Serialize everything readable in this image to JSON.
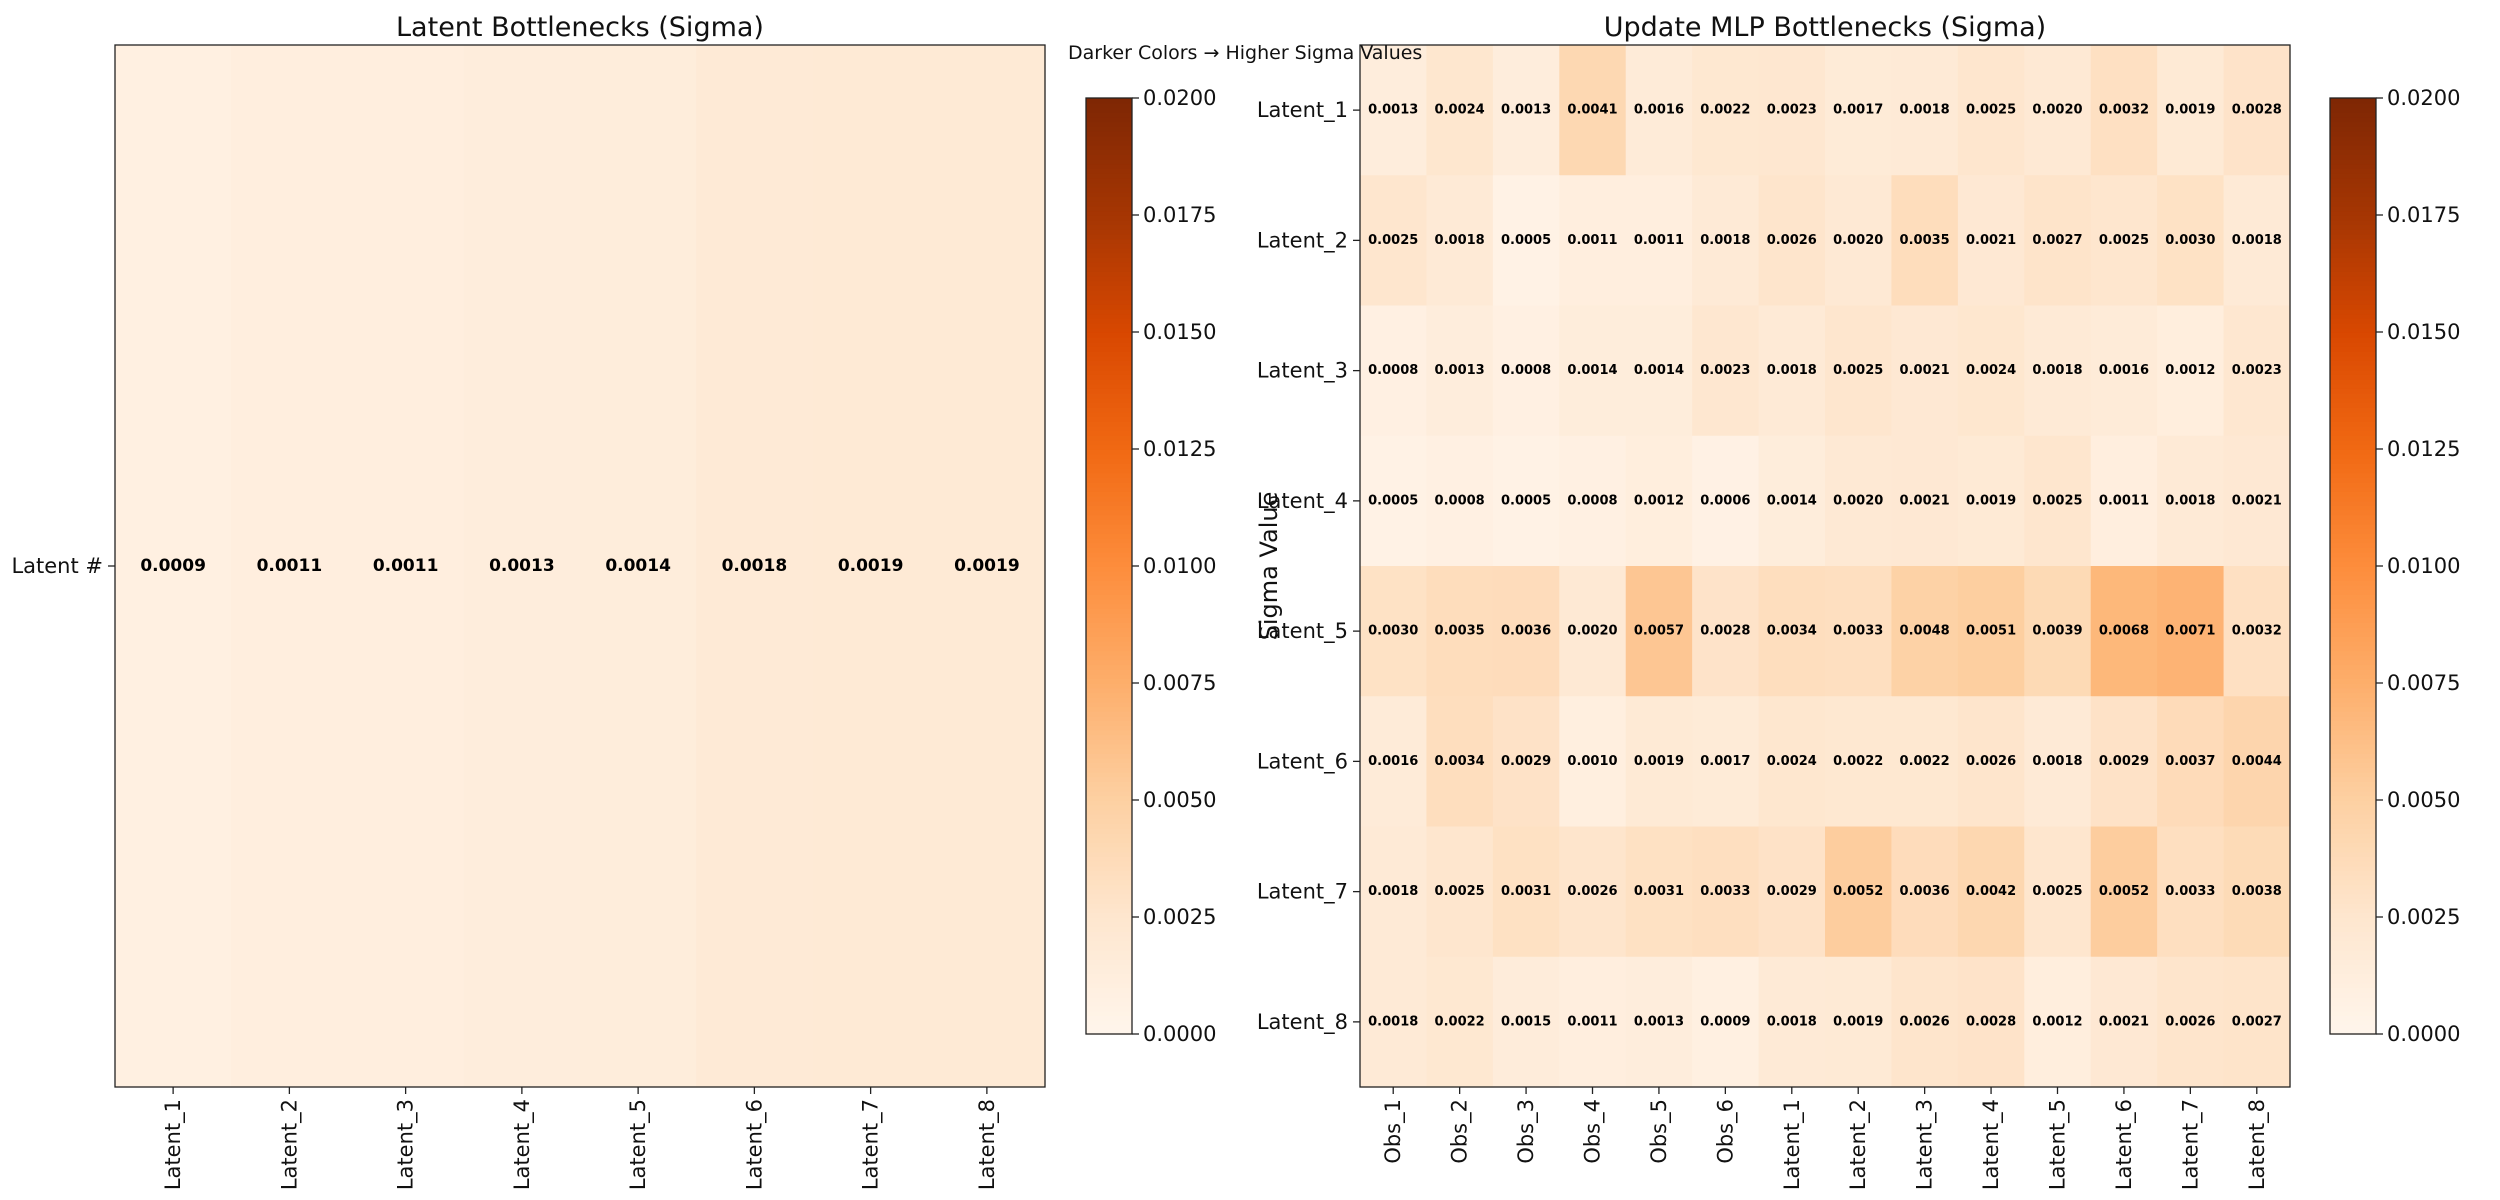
{
  "figure_note": "Darker Colors → Higher Sigma Values",
  "colormap_stops": [
    "#fff5eb",
    "#fee6ce",
    "#fdd0a2",
    "#fdae6b",
    "#fd8d3c",
    "#f16913",
    "#d94801",
    "#a63603",
    "#7f2704"
  ],
  "chart_data": [
    {
      "type": "heatmap",
      "title": "Latent Bottlenecks (Sigma)",
      "x_labels": [
        "Latent_1",
        "Latent_2",
        "Latent_3",
        "Latent_4",
        "Latent_5",
        "Latent_6",
        "Latent_7",
        "Latent_8"
      ],
      "y_labels": [
        "Latent #"
      ],
      "values": [
        [
          0.0009,
          0.0011,
          0.0011,
          0.0013,
          0.0014,
          0.0018,
          0.0019,
          0.0019
        ]
      ],
      "value_labels": [
        [
          "0.0009",
          "0.0011",
          "0.0011",
          "0.0013",
          "0.0014",
          "0.0018",
          "0.0019",
          "0.0019"
        ]
      ],
      "colorbar": {
        "label": "Sigma Value",
        "range": [
          0,
          0.02
        ],
        "ticks": [
          0,
          0.0025,
          0.005,
          0.0075,
          0.01,
          0.0125,
          0.015,
          0.0175,
          0.02
        ],
        "tick_labels": [
          "0.0000",
          "0.0025",
          "0.0050",
          "0.0075",
          "0.0100",
          "0.0125",
          "0.0150",
          "0.0175",
          "0.0200"
        ]
      }
    },
    {
      "type": "heatmap",
      "title": "Update MLP Bottlenecks (Sigma)",
      "x_labels": [
        "Obs_1",
        "Obs_2",
        "Obs_3",
        "Obs_4",
        "Obs_5",
        "Obs_6",
        "Latent_1",
        "Latent_2",
        "Latent_3",
        "Latent_4",
        "Latent_5",
        "Latent_6",
        "Latent_7",
        "Latent_8"
      ],
      "y_labels": [
        "Latent_1",
        "Latent_2",
        "Latent_3",
        "Latent_4",
        "Latent_5",
        "Latent_6",
        "Latent_7",
        "Latent_8"
      ],
      "values": [
        [
          0.0013,
          0.0024,
          0.0013,
          0.0041,
          0.0016,
          0.0022,
          0.0023,
          0.0017,
          0.0018,
          0.0025,
          0.002,
          0.0032,
          0.0019,
          0.0028
        ],
        [
          0.0025,
          0.0018,
          0.0005,
          0.0011,
          0.0011,
          0.0018,
          0.0026,
          0.002,
          0.0035,
          0.0021,
          0.0027,
          0.0025,
          0.003,
          0.0018
        ],
        [
          0.0008,
          0.0013,
          0.0008,
          0.0014,
          0.0014,
          0.0023,
          0.0018,
          0.0025,
          0.0021,
          0.0024,
          0.0018,
          0.0016,
          0.0012,
          0.0023
        ],
        [
          0.0005,
          0.0008,
          0.0005,
          0.0008,
          0.0012,
          0.0006,
          0.0014,
          0.002,
          0.0021,
          0.0019,
          0.0025,
          0.0011,
          0.0018,
          0.0021
        ],
        [
          0.003,
          0.0035,
          0.0036,
          0.002,
          0.0057,
          0.0028,
          0.0034,
          0.0033,
          0.0048,
          0.0051,
          0.0039,
          0.0068,
          0.0071,
          0.0032
        ],
        [
          0.0016,
          0.0034,
          0.0029,
          0.001,
          0.0019,
          0.0017,
          0.0024,
          0.0022,
          0.0022,
          0.0026,
          0.0018,
          0.0029,
          0.0037,
          0.0044
        ],
        [
          0.0018,
          0.0025,
          0.0031,
          0.0026,
          0.0031,
          0.0033,
          0.0029,
          0.0052,
          0.0036,
          0.0042,
          0.0025,
          0.0052,
          0.0033,
          0.0038
        ],
        [
          0.0018,
          0.0022,
          0.0015,
          0.0011,
          0.0013,
          0.0009,
          0.0018,
          0.0019,
          0.0026,
          0.0028,
          0.0012,
          0.0021,
          0.0026,
          0.0027
        ]
      ],
      "value_labels": [
        [
          "0.0013",
          "0.0024",
          "0.0013",
          "0.0041",
          "0.0016",
          "0.0022",
          "0.0023",
          "0.0017",
          "0.0018",
          "0.0025",
          "0.0020",
          "0.0032",
          "0.0019",
          "0.0028"
        ],
        [
          "0.0025",
          "0.0018",
          "0.0005",
          "0.0011",
          "0.0011",
          "0.0018",
          "0.0026",
          "0.0020",
          "0.0035",
          "0.0021",
          "0.0027",
          "0.0025",
          "0.0030",
          "0.0018"
        ],
        [
          "0.0008",
          "0.0013",
          "0.0008",
          "0.0014",
          "0.0014",
          "0.0023",
          "0.0018",
          "0.0025",
          "0.0021",
          "0.0024",
          "0.0018",
          "0.0016",
          "0.0012",
          "0.0023"
        ],
        [
          "0.0005",
          "0.0008",
          "0.0005",
          "0.0008",
          "0.0012",
          "0.0006",
          "0.0014",
          "0.0020",
          "0.0021",
          "0.0019",
          "0.0025",
          "0.0011",
          "0.0018",
          "0.0021"
        ],
        [
          "0.0030",
          "0.0035",
          "0.0036",
          "0.0020",
          "0.0057",
          "0.0028",
          "0.0034",
          "0.0033",
          "0.0048",
          "0.0051",
          "0.0039",
          "0.0068",
          "0.0071",
          "0.0032"
        ],
        [
          "0.0016",
          "0.0034",
          "0.0029",
          "0.0010",
          "0.0019",
          "0.0017",
          "0.0024",
          "0.0022",
          "0.0022",
          "0.0026",
          "0.0018",
          "0.0029",
          "0.0037",
          "0.0044"
        ],
        [
          "0.0018",
          "0.0025",
          "0.0031",
          "0.0026",
          "0.0031",
          "0.0033",
          "0.0029",
          "0.0052",
          "0.0036",
          "0.0042",
          "0.0025",
          "0.0052",
          "0.0033",
          "0.0038"
        ],
        [
          "0.0018",
          "0.0022",
          "0.0015",
          "0.0011",
          "0.0013",
          "0.0009",
          "0.0018",
          "0.0019",
          "0.0026",
          "0.0028",
          "0.0012",
          "0.0021",
          "0.0026",
          "0.0027"
        ]
      ],
      "colorbar": {
        "label": "Sigma Value",
        "range": [
          0,
          0.02
        ],
        "ticks": [
          0,
          0.0025,
          0.005,
          0.0075,
          0.01,
          0.0125,
          0.015,
          0.0175,
          0.02
        ],
        "tick_labels": [
          "0.0000",
          "0.0025",
          "0.0050",
          "0.0075",
          "0.0100",
          "0.0125",
          "0.0150",
          "0.0175",
          "0.0200"
        ]
      }
    }
  ]
}
